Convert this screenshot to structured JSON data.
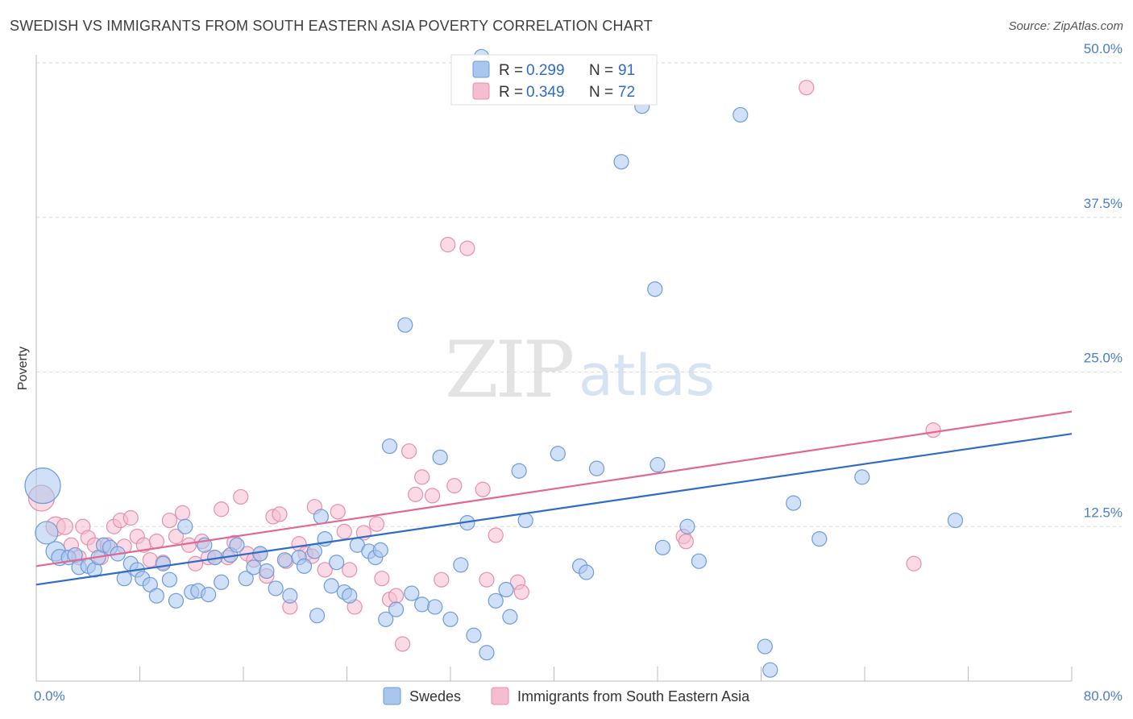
{
  "title": "SWEDISH VS IMMIGRANTS FROM SOUTH EASTERN ASIA POVERTY CORRELATION CHART",
  "source": "Source: ZipAtlas.com",
  "watermark": {
    "zip": "ZIP",
    "atlas": "atlas"
  },
  "colors": {
    "blue_fill": "#a9c6ee",
    "blue_stroke": "#6f9bd9",
    "blue_line": "#2f6cc4",
    "pink_fill": "#f6bdd0",
    "pink_stroke": "#e58fac",
    "pink_line": "#e06892",
    "grid": "#d9d9d9",
    "axis_text": "#4a7cc9"
  },
  "chart_data": {
    "type": "scatter",
    "title": "SWEDISH VS IMMIGRANTS FROM SOUTH EASTERN ASIA POVERTY CORRELATION CHART",
    "xlabel": "",
    "ylabel": "Poverty",
    "xlim": [
      0,
      80
    ],
    "ylim": [
      0,
      50
    ],
    "x_tick_labels": {
      "min": "0.0%",
      "max": "80.0%"
    },
    "y_ticks": [
      {
        "value": 12.5,
        "label": "12.5%"
      },
      {
        "value": 25.0,
        "label": "25.0%"
      },
      {
        "value": 37.5,
        "label": "37.5%"
      },
      {
        "value": 50.0,
        "label": "50.0%"
      }
    ],
    "legend": {
      "stats": [
        {
          "r_label": "R =",
          "r_value": "0.299",
          "n_label": "N =",
          "n_value": "91"
        },
        {
          "r_label": "R =",
          "r_value": "0.349",
          "n_label": "N =",
          "n_value": "72"
        }
      ]
    },
    "series": [
      {
        "name": "Swedes",
        "color": "#a9c6ee",
        "trend": {
          "x0": 0,
          "y0": 7.8,
          "x1": 80,
          "y1": 20.0
        },
        "points": [
          [
            0.5,
            15.8,
            22
          ],
          [
            0.8,
            12,
            14
          ],
          [
            1.5,
            10.5,
            12
          ],
          [
            1.8,
            10.0,
            10
          ],
          [
            2.5,
            10,
            9
          ],
          [
            3,
            10.2,
            9
          ],
          [
            3.3,
            9.2,
            9
          ],
          [
            4,
            9.3,
            9
          ],
          [
            4.5,
            9.0,
            9
          ],
          [
            4.8,
            10,
            9
          ],
          [
            5.2,
            11,
            9
          ],
          [
            5.7,
            10.8,
            9
          ],
          [
            6.3,
            10.3,
            9
          ],
          [
            6.8,
            8.3,
            9
          ],
          [
            7.3,
            9.5,
            9
          ],
          [
            7.8,
            9.0,
            9
          ],
          [
            8.2,
            8.3,
            9
          ],
          [
            8.8,
            7.8,
            9
          ],
          [
            9.3,
            6.9,
            9
          ],
          [
            9.8,
            9.5,
            9
          ],
          [
            10.3,
            8.2,
            9
          ],
          [
            10.8,
            6.5,
            9
          ],
          [
            11.5,
            12.5,
            9
          ],
          [
            12,
            7.2,
            9
          ],
          [
            12.5,
            7.3,
            9
          ],
          [
            13,
            11,
            9
          ],
          [
            13.3,
            7,
            9
          ],
          [
            13.8,
            10,
            9
          ],
          [
            14.3,
            8.0,
            9
          ],
          [
            15,
            10.2,
            9
          ],
          [
            15.5,
            11,
            9
          ],
          [
            16.2,
            8.3,
            9
          ],
          [
            16.8,
            9.2,
            9
          ],
          [
            17.3,
            10.3,
            9
          ],
          [
            17.8,
            8.9,
            9
          ],
          [
            18.5,
            7.5,
            9
          ],
          [
            19.2,
            9.8,
            9
          ],
          [
            19.6,
            6.9,
            9
          ],
          [
            20.3,
            10,
            9
          ],
          [
            20.7,
            9.3,
            9
          ],
          [
            21.5,
            10.5,
            9
          ],
          [
            21.7,
            5.3,
            9
          ],
          [
            22,
            13.3,
            9
          ],
          [
            22.3,
            11.5,
            9
          ],
          [
            22.8,
            7.7,
            9
          ],
          [
            23.2,
            9.6,
            9
          ],
          [
            23.8,
            7.2,
            9
          ],
          [
            24.2,
            6.9,
            9
          ],
          [
            24.8,
            11,
            9
          ],
          [
            25.7,
            10.5,
            9
          ],
          [
            26.2,
            10.0,
            9
          ],
          [
            26.6,
            10.6,
            9
          ],
          [
            27,
            5.0,
            9
          ],
          [
            27.3,
            19,
            9
          ],
          [
            27.8,
            5.8,
            9
          ],
          [
            28.5,
            28.8,
            9
          ],
          [
            29,
            7.1,
            9
          ],
          [
            29.8,
            6.2,
            9
          ],
          [
            30.8,
            6.0,
            9
          ],
          [
            31.2,
            18.1,
            9
          ],
          [
            32,
            5.0,
            9
          ],
          [
            32.8,
            9.4,
            9
          ],
          [
            33.3,
            12.8,
            9
          ],
          [
            33.8,
            3.7,
            9
          ],
          [
            34.8,
            2.3,
            9
          ],
          [
            35.5,
            6.5,
            9
          ],
          [
            36.3,
            7.4,
            9
          ],
          [
            36.6,
            5.2,
            9
          ],
          [
            37.3,
            17.0,
            9
          ],
          [
            37.8,
            13.0,
            9
          ],
          [
            40.3,
            18.4,
            9
          ],
          [
            42,
            9.3,
            9
          ],
          [
            42.5,
            8.8,
            9
          ],
          [
            43.3,
            17.2,
            9
          ],
          [
            45.2,
            42.0,
            9
          ],
          [
            46.8,
            46.5,
            9
          ],
          [
            47.8,
            31.7,
            9
          ],
          [
            48,
            17.5,
            9
          ],
          [
            48.4,
            10.8,
            9
          ],
          [
            50.3,
            12.5,
            9
          ],
          [
            51.2,
            9.7,
            9
          ],
          [
            54.4,
            45.8,
            9
          ],
          [
            56.3,
            2.8,
            9
          ],
          [
            56.7,
            0.9,
            9
          ],
          [
            58.5,
            14.4,
            9
          ],
          [
            60.5,
            11.5,
            9
          ],
          [
            63.8,
            16.5,
            9
          ],
          [
            71,
            13.0,
            9
          ],
          [
            34.4,
            50.5,
            9
          ]
        ]
      },
      {
        "name": "Immigrants from South Eastern Asia",
        "color": "#f6bdd0",
        "trend": {
          "x0": 0,
          "y0": 9.3,
          "x1": 80,
          "y1": 21.8
        },
        "points": [
          [
            0.4,
            14.8,
            16
          ],
          [
            1.5,
            12.5,
            12
          ],
          [
            2.2,
            12.5,
            10
          ],
          [
            2.7,
            11.0,
            9
          ],
          [
            3.3,
            10,
            9
          ],
          [
            3.6,
            12.5,
            9
          ],
          [
            4,
            11.6,
            9
          ],
          [
            4.5,
            11,
            9
          ],
          [
            5,
            10,
            9
          ],
          [
            5.5,
            11,
            9
          ],
          [
            6,
            12.5,
            9
          ],
          [
            6.5,
            13,
            9
          ],
          [
            6.8,
            10.9,
            9
          ],
          [
            7.3,
            13.2,
            9
          ],
          [
            7.8,
            11.7,
            9
          ],
          [
            8.3,
            11,
            9
          ],
          [
            8.8,
            9.8,
            9
          ],
          [
            9.3,
            11.3,
            9
          ],
          [
            9.8,
            9.6,
            9
          ],
          [
            10.3,
            13,
            9
          ],
          [
            10.8,
            11.7,
            9
          ],
          [
            11.3,
            13.6,
            9
          ],
          [
            11.8,
            11,
            9
          ],
          [
            12.3,
            9.5,
            9
          ],
          [
            12.8,
            11.3,
            9
          ],
          [
            13.3,
            10,
            9
          ],
          [
            13.8,
            10,
            9
          ],
          [
            14.3,
            13.9,
            9
          ],
          [
            14.8,
            10,
            9
          ],
          [
            15.3,
            11.2,
            9
          ],
          [
            15.8,
            14.9,
            9
          ],
          [
            16.3,
            10.3,
            9
          ],
          [
            16.8,
            9.8,
            9
          ],
          [
            17.3,
            10.3,
            9
          ],
          [
            17.8,
            8.5,
            9
          ],
          [
            18.3,
            13.3,
            9
          ],
          [
            18.8,
            13.5,
            9
          ],
          [
            19.3,
            9.7,
            9
          ],
          [
            19.6,
            6.0,
            9
          ],
          [
            20.3,
            11.1,
            9
          ],
          [
            20.8,
            10.3,
            9
          ],
          [
            21.3,
            10.1,
            9
          ],
          [
            21.5,
            14.1,
            9
          ],
          [
            22.3,
            9.0,
            9
          ],
          [
            23.3,
            13.7,
            9
          ],
          [
            23.8,
            12.1,
            9
          ],
          [
            24.2,
            9.0,
            9
          ],
          [
            24.6,
            6.0,
            9
          ],
          [
            25.3,
            12.0,
            9
          ],
          [
            26.3,
            12.7,
            9
          ],
          [
            26.7,
            8.3,
            9
          ],
          [
            27.3,
            6.6,
            9
          ],
          [
            27.8,
            6.9,
            9
          ],
          [
            28.3,
            3.0,
            9
          ],
          [
            28.8,
            18.6,
            9
          ],
          [
            29.3,
            15.1,
            9
          ],
          [
            29.8,
            16.5,
            9
          ],
          [
            30.6,
            15.0,
            9
          ],
          [
            31.3,
            8.2,
            9
          ],
          [
            31.8,
            35.3,
            9
          ],
          [
            32.3,
            15.8,
            9
          ],
          [
            33.3,
            35.0,
            9
          ],
          [
            34.5,
            15.5,
            9
          ],
          [
            34.8,
            8.2,
            9
          ],
          [
            35.5,
            11.8,
            9
          ],
          [
            37.2,
            8.0,
            9
          ],
          [
            37.5,
            7.2,
            9
          ],
          [
            50,
            11.7,
            9
          ],
          [
            59.5,
            48.0,
            9
          ],
          [
            67.8,
            9.5,
            9
          ],
          [
            69.3,
            20.3,
            9
          ],
          [
            50.2,
            11.3,
            9
          ]
        ]
      }
    ]
  }
}
